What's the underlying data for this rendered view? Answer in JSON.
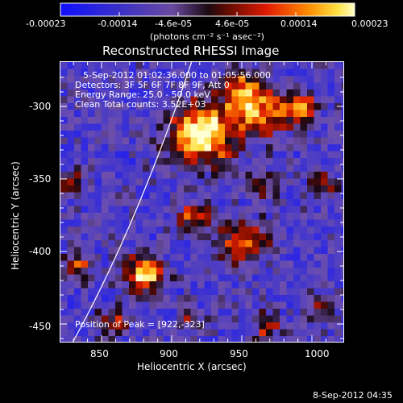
{
  "colorbar": {
    "tick_labels": [
      "-0.00023",
      "-0.00014",
      "-4.6e-05",
      "4.6e-05",
      "0.00014",
      "0.00023"
    ],
    "units": "(photons cm⁻² s⁻¹ asec⁻²)"
  },
  "image": {
    "title": "Reconstructed RHESSI Image",
    "time_range": "5-Sep-2012 01:02:36.000 to 01:05:56.000",
    "detectors": "Detectors: 3F 5F 6F 7F 8F 9F, Att 0",
    "energy_range": "Energy Range: 25.0 - 50.0 keV",
    "clean_counts": "Clean     Total counts: 3.52E+03",
    "peak_position": "Position of Peak = [922,-323]"
  },
  "axes": {
    "xlabel": "Heliocentric X (arcsec)",
    "ylabel": "Heliocentric Y (arcsec)",
    "xticks": [
      "850",
      "900",
      "950",
      "1000"
    ],
    "yticks": [
      "-300",
      "-350",
      "-400",
      "-450"
    ]
  },
  "footer": {
    "timestamp": "8-Sep-2012 04:35"
  }
}
